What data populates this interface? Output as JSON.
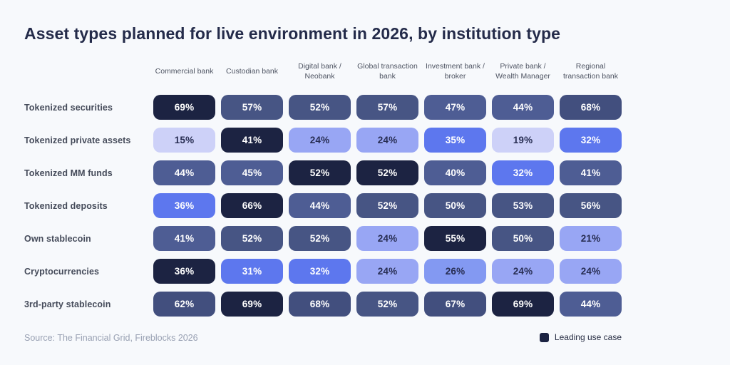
{
  "chart_data": {
    "type": "heatmap",
    "title": "Asset types planned for live environment in 2026, by institution type",
    "source": "Source: The Financial Grid, Fireblocks 2026",
    "legend": {
      "label": "Leading use case",
      "color": "#1c2342"
    },
    "columns": [
      "Commercial bank",
      "Custodian bank",
      "Digital bank / Neobank",
      "Global transaction bank",
      "Investment bank / broker",
      "Private bank / Wealth Manager",
      "Regional transaction bank"
    ],
    "rows": [
      {
        "label": "Tokenized securities",
        "values": [
          69,
          57,
          52,
          57,
          47,
          44,
          68
        ],
        "leading": [
          0
        ]
      },
      {
        "label": "Tokenized private assets",
        "values": [
          15,
          41,
          24,
          24,
          35,
          19,
          32
        ],
        "leading": [
          1
        ]
      },
      {
        "label": "Tokenized MM funds",
        "values": [
          44,
          45,
          52,
          52,
          40,
          32,
          41
        ],
        "leading": [
          2,
          3
        ]
      },
      {
        "label": "Tokenized deposits",
        "values": [
          36,
          66,
          44,
          52,
          50,
          53,
          56
        ],
        "leading": [
          1
        ]
      },
      {
        "label": "Own stablecoin",
        "values": [
          41,
          52,
          52,
          24,
          55,
          50,
          21
        ],
        "leading": [
          4
        ]
      },
      {
        "label": "Cryptocurrencies",
        "values": [
          36,
          31,
          32,
          24,
          26,
          24,
          24
        ],
        "leading": [
          0
        ]
      },
      {
        "label": "3rd-party stablecoin",
        "values": [
          62,
          69,
          68,
          52,
          67,
          69,
          44
        ],
        "leading": [
          1,
          5
        ]
      }
    ],
    "value_unit": "%",
    "color_scale": [
      {
        "max": 19,
        "bg": "#cdd1f8",
        "text": "#272d52"
      },
      {
        "max": 25,
        "bg": "#98a6f4",
        "text": "#272d52"
      },
      {
        "max": 29,
        "bg": "#8399f2",
        "text": "#272d52"
      },
      {
        "max": 39,
        "bg": "#5d77ee",
        "text": "#ffffff"
      },
      {
        "max": 49,
        "bg": "#4e5d94",
        "text": "#ffffff"
      },
      {
        "max": 59,
        "bg": "#475584",
        "text": "#ffffff"
      },
      {
        "max": 100,
        "bg": "#424f7e",
        "text": "#ffffff"
      }
    ],
    "leading_style": {
      "bg": "#1c2342",
      "text": "#ffffff"
    }
  }
}
